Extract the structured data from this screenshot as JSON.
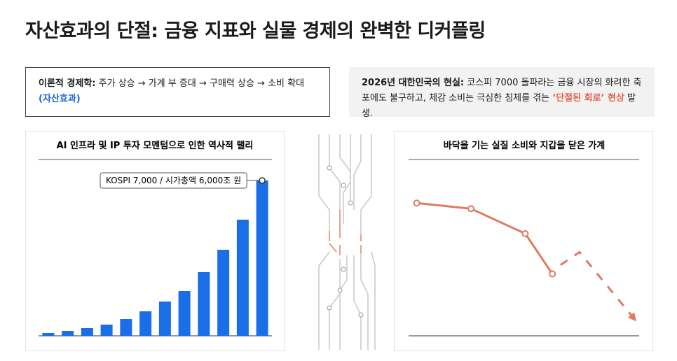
{
  "title": "자산효과의 단절: 금융 지표와 실물 경제의 완벽한 디커플링",
  "boxes": [
    {
      "label": "이론적 경제학:",
      "text": "주가 상승 → 가계 부 증대 → 구매력 상승 → 소비 확대",
      "highlight": "(자산효과)"
    },
    {
      "label": "2026년 대한민국의 현실:",
      "text": "코스피 7000 돌파라는 금융 시장의 화려한 축포에도 불구하고, 체감 소비는 극심한 침체를 겪는",
      "highlight": "‘단절된 회로’ 현상",
      "tail": "발생."
    }
  ],
  "chart_data": [
    {
      "type": "bar",
      "title": "AI 인프라 및 IP 투자 모멘텀으로 인한 역사적 랠리",
      "values": [
        4,
        7,
        11,
        16,
        24,
        35,
        49,
        64,
        91,
        123,
        166,
        222
      ],
      "color": "#1a6fe8",
      "ylim": [
        0,
        230
      ],
      "annotation": "KOSPI 7,000 / 시가총액 6,000조 원"
    },
    {
      "type": "line",
      "title": "바닥을 기는 실질 소비와 지갑을 닫은 가계",
      "xlim": [
        -0.15,
        4.1
      ],
      "ylim": [
        0,
        200
      ],
      "color": "#e07a63",
      "series": [
        {
          "x": [
            0,
            1,
            2,
            2.5
          ],
          "values": [
            165,
            158,
            127,
            77
          ],
          "dashed": false
        },
        {
          "x": [
            2.65,
            3,
            4
          ],
          "values": [
            88,
            104,
            22
          ],
          "dashed": true
        }
      ]
    }
  ]
}
